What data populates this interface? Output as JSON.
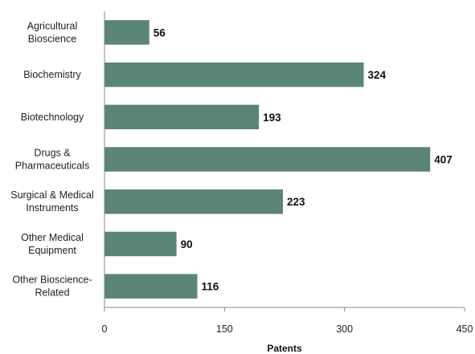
{
  "chart_data": {
    "type": "bar",
    "orientation": "horizontal",
    "categories": [
      [
        "Agricultural",
        "Bioscience"
      ],
      [
        "Biochemistry"
      ],
      [
        "Biotechnology"
      ],
      [
        "Drugs &",
        "Pharmaceuticals"
      ],
      [
        "Surgical & Medical",
        "Instruments"
      ],
      [
        "Other Medical",
        "Equipment"
      ],
      [
        "Other Bioscience-",
        "Related"
      ]
    ],
    "values": [
      56,
      324,
      193,
      407,
      223,
      90,
      116
    ],
    "xlabel": "Patents",
    "ylabel": "",
    "xlim": [
      0,
      450
    ],
    "xticks": [
      "0",
      "150",
      "300",
      "450"
    ],
    "grid": false,
    "legend": "none",
    "bar_color": "#5a8478"
  }
}
